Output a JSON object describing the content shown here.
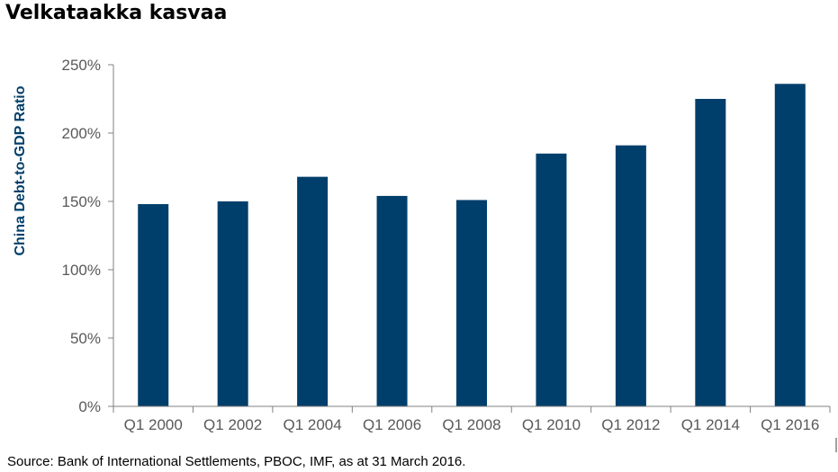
{
  "page": {
    "title": "Velkataakka kasvaa",
    "source": "Source: Bank of International Settlements, PBOC, IMF, as at 31 March 2016."
  },
  "chart_data": {
    "type": "bar",
    "categories": [
      "Q1 2000",
      "Q1 2002",
      "Q1 2004",
      "Q1 2006",
      "Q1 2008",
      "Q1 2010",
      "Q1 2012",
      "Q1 2014",
      "Q1 2016"
    ],
    "values": [
      148,
      150,
      168,
      154,
      151,
      185,
      191,
      225,
      236
    ],
    "xlabel": "",
    "ylabel": "China Debt-to-GDP Ratio",
    "ylim": [
      0,
      250
    ],
    "yticks": [
      0,
      50,
      100,
      150,
      200,
      250
    ],
    "ytick_labels": [
      "0%",
      "50%",
      "100%",
      "150%",
      "200%",
      "250%"
    ],
    "grid": false,
    "legend": "none",
    "colors": {
      "bar": "#003F6B",
      "ylabel": "#003F6B",
      "axis": "#808080",
      "tick_text": "#595959"
    }
  }
}
